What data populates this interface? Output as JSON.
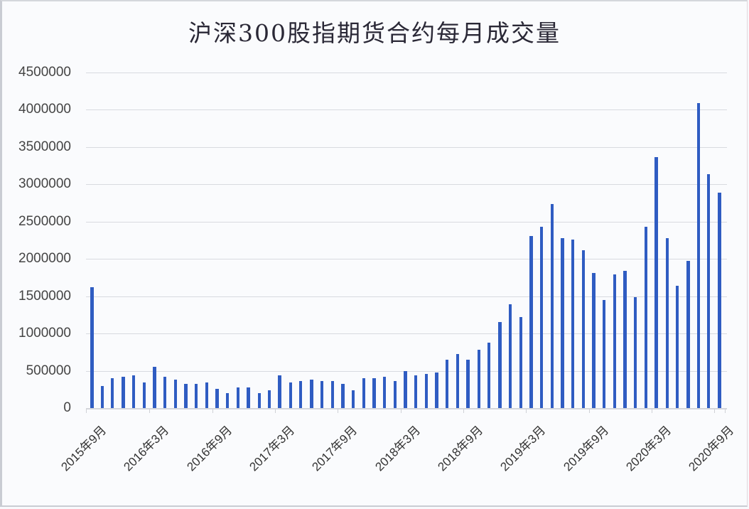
{
  "chart_data": {
    "type": "bar",
    "title": "沪深300股指期货合约每月成交量",
    "xlabel": "",
    "ylabel": "",
    "ylim": [
      0,
      4500000
    ],
    "yticks": [
      "0",
      "500000",
      "1000000",
      "1500000",
      "2000000",
      "2500000",
      "3000000",
      "3500000",
      "4000000",
      "4500000"
    ],
    "xtick_labels": [
      "2015年9月",
      "2016年3月",
      "2016年9月",
      "2017年3月",
      "2017年9月",
      "2018年3月",
      "2018年9月",
      "2019年3月",
      "2019年9月",
      "2020年3月",
      "2020年9月"
    ],
    "grid": true,
    "legend": null,
    "bar_color": "#2f5cc2",
    "categories": [
      "2015-09",
      "2015-10",
      "2015-11",
      "2015-12",
      "2016-01",
      "2016-02",
      "2016-03",
      "2016-04",
      "2016-05",
      "2016-06",
      "2016-07",
      "2016-08",
      "2016-09",
      "2016-10",
      "2016-11",
      "2016-12",
      "2017-01",
      "2017-02",
      "2017-03",
      "2017-04",
      "2017-05",
      "2017-06",
      "2017-07",
      "2017-08",
      "2017-09",
      "2017-10",
      "2017-11",
      "2017-12",
      "2018-01",
      "2018-02",
      "2018-03",
      "2018-04",
      "2018-05",
      "2018-06",
      "2018-07",
      "2018-08",
      "2018-09",
      "2018-10",
      "2018-11",
      "2018-12",
      "2019-01",
      "2019-02",
      "2019-03",
      "2019-04",
      "2019-05",
      "2019-06",
      "2019-07",
      "2019-08",
      "2019-09",
      "2019-10",
      "2019-11",
      "2019-12",
      "2020-01",
      "2020-02",
      "2020-03",
      "2020-04",
      "2020-05",
      "2020-06",
      "2020-07",
      "2020-08",
      "2020-09"
    ],
    "values": [
      1620000,
      300000,
      400000,
      420000,
      440000,
      340000,
      550000,
      420000,
      380000,
      320000,
      320000,
      340000,
      260000,
      200000,
      280000,
      280000,
      200000,
      240000,
      440000,
      340000,
      360000,
      380000,
      360000,
      360000,
      320000,
      240000,
      400000,
      400000,
      420000,
      360000,
      500000,
      440000,
      460000,
      480000,
      650000,
      720000,
      650000,
      780000,
      880000,
      1150000,
      1390000,
      1220000,
      2310000,
      2430000,
      2740000,
      2280000,
      2260000,
      2120000,
      1810000,
      1450000,
      1790000,
      1840000,
      1490000,
      2430000,
      3370000,
      2280000,
      1640000,
      1970000,
      4090000,
      3140000,
      2890000
    ]
  }
}
